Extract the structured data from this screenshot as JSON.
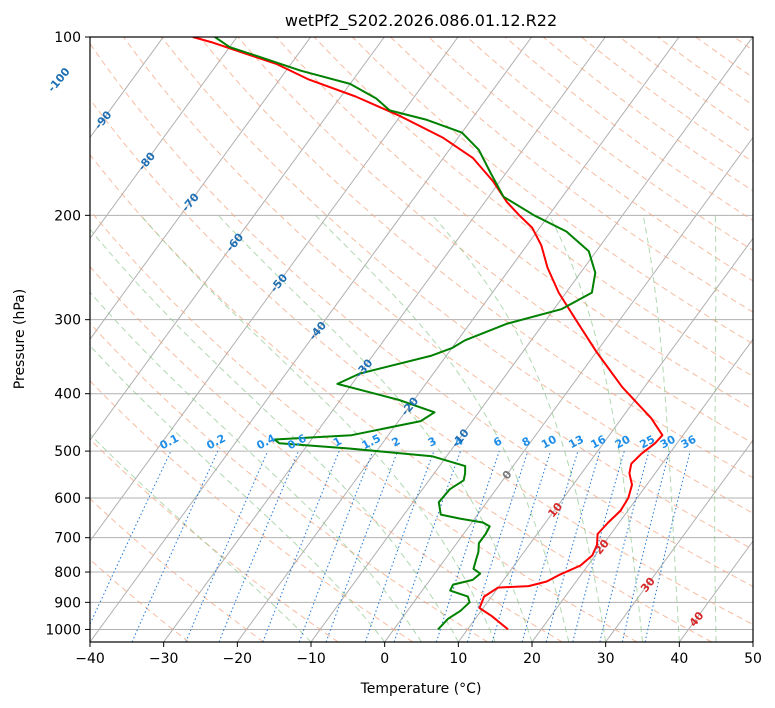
{
  "chart_data": {
    "type": "line",
    "title": "wetPf2_S202.2026.086.01.12.R22",
    "xlabel": "Temperature (°C)",
    "ylabel": "Pressure (hPa)",
    "xlim": [
      -40,
      50
    ],
    "ylim": [
      1050,
      100
    ],
    "x_ticks": [
      "−40",
      "−30",
      "−20",
      "−10",
      "0",
      "10",
      "20",
      "30",
      "40",
      "50"
    ],
    "x_tick_values": [
      -40,
      -30,
      -20,
      -10,
      0,
      10,
      20,
      30,
      40,
      50
    ],
    "y_ticks": [
      "1000",
      "900",
      "800",
      "700",
      "600",
      "500",
      "400",
      "300",
      "200",
      "100"
    ],
    "y_tick_values": [
      1000,
      900,
      800,
      700,
      600,
      500,
      400,
      300,
      200,
      100
    ],
    "isotherm_labels": [
      {
        "text": "-100",
        "p": 118,
        "t": -100
      },
      {
        "text": "-90",
        "p": 138,
        "t": -90
      },
      {
        "text": "-80",
        "p": 162,
        "t": -80
      },
      {
        "text": "-70",
        "p": 190,
        "t": -70
      },
      {
        "text": "-60",
        "p": 222,
        "t": -60
      },
      {
        "text": "-50",
        "p": 260,
        "t": -50
      },
      {
        "text": "-40",
        "p": 313,
        "t": -40
      },
      {
        "text": "-30",
        "p": 362,
        "t": -30
      },
      {
        "text": "-20",
        "p": 420,
        "t": -20
      },
      {
        "text": "-10",
        "p": 475,
        "t": -10
      },
      {
        "text": "0",
        "p": 548,
        "t": 0
      },
      {
        "text": "10",
        "p": 628,
        "t": 10
      },
      {
        "text": "20",
        "p": 725,
        "t": 20
      },
      {
        "text": "30",
        "p": 840,
        "t": 30
      },
      {
        "text": "40",
        "p": 960,
        "t": 40
      }
    ],
    "mixing_ratio_labels": [
      "0.1",
      "0.2",
      "0.4",
      "0.6",
      "1",
      "1.5",
      "2",
      "3",
      "4",
      "6",
      "8",
      "10",
      "13",
      "16",
      "20",
      "25",
      "30",
      "36"
    ],
    "mixing_ratio_values": [
      0.1,
      0.2,
      0.4,
      0.6,
      1,
      1.5,
      2,
      3,
      4,
      6,
      8,
      10,
      13,
      16,
      20,
      25,
      30,
      36
    ],
    "series": [
      {
        "name": "Temperature",
        "color": "#ff0000",
        "points": [
          [
            15.5,
            1000
          ],
          [
            12,
            950
          ],
          [
            9.5,
            920
          ],
          [
            9.0,
            880
          ],
          [
            10,
            850
          ],
          [
            14,
            845
          ],
          [
            16,
            830
          ],
          [
            17,
            810
          ],
          [
            19,
            780
          ],
          [
            19.6,
            750
          ],
          [
            19.2,
            720
          ],
          [
            18.2,
            690
          ],
          [
            18.5,
            660
          ],
          [
            19.0,
            630
          ],
          [
            18.8,
            600
          ],
          [
            18.0,
            570
          ],
          [
            16.5,
            545
          ],
          [
            15.8,
            525
          ],
          [
            16.2,
            505
          ],
          [
            17.0,
            485
          ],
          [
            17.2,
            470
          ],
          [
            14,
            440
          ],
          [
            7,
            390
          ],
          [
            0,
            340
          ],
          [
            -6,
            300
          ],
          [
            -11,
            270
          ],
          [
            -15,
            245
          ],
          [
            -18,
            225
          ],
          [
            -21,
            210
          ],
          [
            -24,
            200
          ],
          [
            -27,
            190
          ],
          [
            -31,
            175
          ],
          [
            -36,
            160
          ],
          [
            -42,
            148
          ],
          [
            -50,
            136
          ],
          [
            -58,
            126
          ],
          [
            -66,
            118
          ],
          [
            -72,
            111
          ],
          [
            -78,
            106
          ],
          [
            -83,
            102
          ],
          [
            -86,
            100
          ]
        ]
      },
      {
        "name": "Dewpoint",
        "color": "#008000",
        "points": [
          [
            6.0,
            1000
          ],
          [
            6.3,
            960
          ],
          [
            7.2,
            930
          ],
          [
            7.6,
            900
          ],
          [
            6.8,
            880
          ],
          [
            3.8,
            860
          ],
          [
            3.6,
            840
          ],
          [
            5.8,
            825
          ],
          [
            6.2,
            805
          ],
          [
            4.8,
            790
          ],
          [
            4.2,
            760
          ],
          [
            3.8,
            740
          ],
          [
            3.0,
            715
          ],
          [
            3.0,
            690
          ],
          [
            2.8,
            670
          ],
          [
            1.5,
            660
          ],
          [
            -2,
            650
          ],
          [
            -5,
            640
          ],
          [
            -6.5,
            610
          ],
          [
            -6.3,
            580
          ],
          [
            -5.3,
            560
          ],
          [
            -5.8,
            545
          ],
          [
            -6.5,
            530
          ],
          [
            -12,
            510
          ],
          [
            -24,
            495
          ],
          [
            -34,
            485
          ],
          [
            -35,
            478
          ],
          [
            -25,
            470
          ],
          [
            -17,
            445
          ],
          [
            -16,
            430
          ],
          [
            -22,
            410
          ],
          [
            -32,
            385
          ],
          [
            -30,
            370
          ],
          [
            -22,
            345
          ],
          [
            -20,
            335
          ],
          [
            -19,
            325
          ],
          [
            -15,
            305
          ],
          [
            -9,
            288
          ],
          [
            -6.5,
            270
          ],
          [
            -8,
            250
          ],
          [
            -11,
            230
          ],
          [
            -16,
            213
          ],
          [
            -22,
            200
          ],
          [
            -28,
            186
          ],
          [
            -32,
            170
          ],
          [
            -36,
            155
          ],
          [
            -40,
            145
          ],
          [
            -46,
            138
          ],
          [
            -52,
            133
          ],
          [
            -55,
            127
          ],
          [
            -60,
            120
          ],
          [
            -68,
            114
          ],
          [
            -75,
            108
          ],
          [
            -80,
            104
          ],
          [
            -83,
            100
          ]
        ]
      }
    ]
  }
}
